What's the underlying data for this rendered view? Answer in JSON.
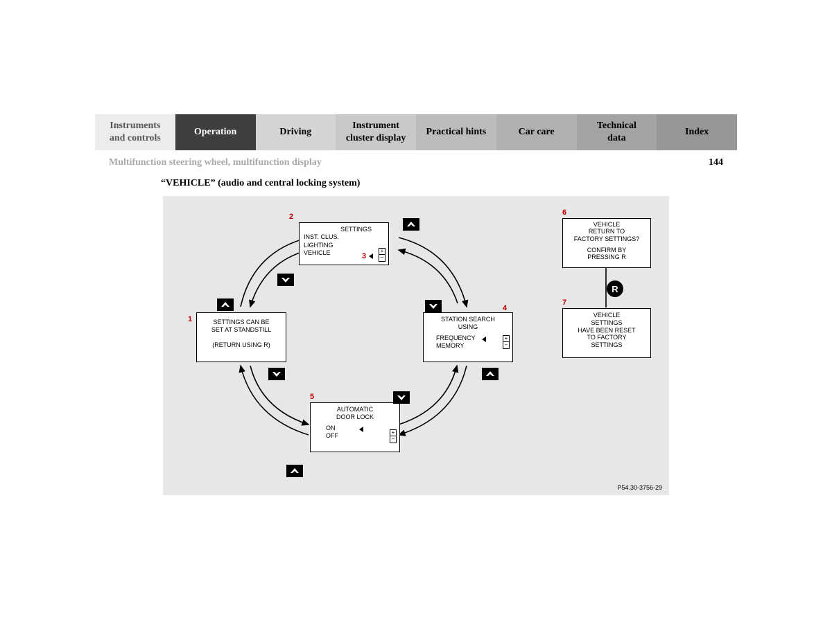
{
  "tabs": [
    {
      "label": "Instruments\nand controls",
      "bg": "#ececec",
      "fg": "#585858"
    },
    {
      "label": "Operation",
      "bg": "#3e3e3e",
      "fg": "#ffffff"
    },
    {
      "label": "Driving",
      "bg": "#d5d5d5",
      "fg": "#000000"
    },
    {
      "label": "Instrument\ncluster display",
      "bg": "#c9c9c9",
      "fg": "#000000"
    },
    {
      "label": "Practical hints",
      "bg": "#bcbcbc",
      "fg": "#000000"
    },
    {
      "label": "Car care",
      "bg": "#b0b0b0",
      "fg": "#000000"
    },
    {
      "label": "Technical\ndata",
      "bg": "#a3a3a3",
      "fg": "#000000"
    },
    {
      "label": "Index",
      "bg": "#979797",
      "fg": "#000000"
    }
  ],
  "subheader": {
    "title": "Multifunction steering wheel, multifunction display",
    "page": "144"
  },
  "section_title": "“VEHICLE” (audio and central locking system)",
  "diagram": {
    "code": "P54.30-3756-29",
    "boxes": {
      "b1": {
        "lines": [
          "SETTINGS CAN BE",
          "SET AT STANDSTILL",
          "",
          "(RETURN USING R)"
        ]
      },
      "b2": {
        "title": "SETTINGS",
        "lines": [
          "INST. CLUS.",
          "LIGHTING",
          "VEHICLE"
        ]
      },
      "b4": {
        "title": "STATION SEARCH",
        "sub": "USING",
        "options": [
          "FREQUENCY",
          "MEMORY"
        ]
      },
      "b5": {
        "title": "AUTOMATIC",
        "sub": "DOOR LOCK",
        "options": [
          "ON",
          "OFF"
        ]
      },
      "b6": {
        "lines": [
          "VEHICLE",
          "RETURN TO",
          "FACTORY SETTINGS?",
          "",
          "CONFIRM BY",
          "PRESSING R"
        ]
      },
      "b7": {
        "lines": [
          "VEHICLE",
          "SETTINGS",
          "HAVE BEEN RESET",
          "TO FACTORY",
          "SETTINGS"
        ]
      }
    },
    "labels": {
      "l1": "1",
      "l2": "2",
      "l3": "3",
      "l4": "4",
      "l5": "5",
      "l6": "6",
      "l7": "7"
    },
    "r_button": "R"
  }
}
